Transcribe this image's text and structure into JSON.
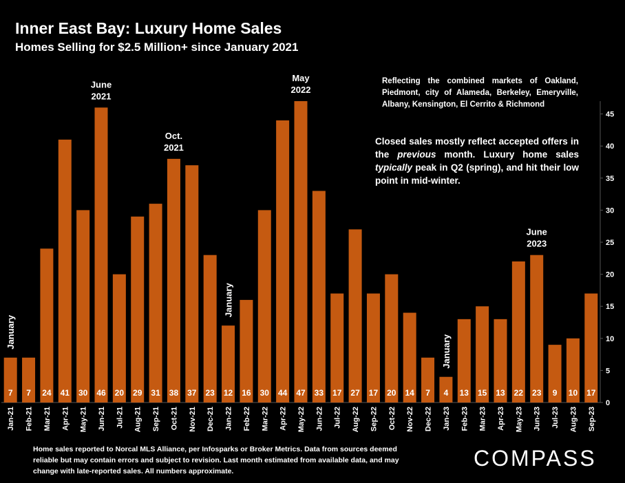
{
  "header": {
    "title": "Inner East Bay: Luxury Home Sales",
    "subtitle": "Homes Selling for $2.5 Million+ since January 2021"
  },
  "notes": {
    "markets": "Reflecting the combined markets of Oakland, Piedmont, city of Alameda, Berkeley, Emeryville, Albany, Kensington, El Cerrito & Richmond",
    "closed_part1": "Closed sales mostly reflect accepted offers in the ",
    "closed_em1": "previous",
    "closed_part2": " month. Luxury home sales ",
    "closed_em2": "typically",
    "closed_part3": " peak in Q2 (spring), and hit their low point in mid-winter.",
    "footnote": "Home sales reported to Norcal MLS Alliance, per Infosparks or Broker Metrics. Data from sources deemed reliable but may contain errors and subject to revision.  Last month estimated from available data, and may change with late-reported sales. All numbers approximate."
  },
  "brand": {
    "logo": "COMPASS"
  },
  "colors": {
    "bar": "#c55a11",
    "background": "#000000",
    "text": "#ffffff",
    "gridline": "#3a3a3a"
  },
  "chart_data": {
    "type": "bar",
    "categories": [
      "Jan-21",
      "Feb-21",
      "Mar-21",
      "Apr-21",
      "May-21",
      "Jun-21",
      "Jul-21",
      "Aug-21",
      "Sep-21",
      "Oct-21",
      "Nov-21",
      "Dec-21",
      "Jan-22",
      "Feb-22",
      "Mar-22",
      "Apr-22",
      "May-22",
      "Jun-22",
      "Jul-22",
      "Aug-22",
      "Sep-22",
      "Oct-22",
      "Nov-22",
      "Dec-22",
      "Jan-23",
      "Feb-23",
      "Mar-23",
      "Apr-23",
      "May-23",
      "Jun-23",
      "Jul-23",
      "Aug-23",
      "Sep-23"
    ],
    "values": [
      7,
      7,
      24,
      41,
      30,
      46,
      20,
      29,
      31,
      38,
      37,
      23,
      12,
      16,
      30,
      44,
      47,
      33,
      17,
      27,
      17,
      20,
      14,
      7,
      4,
      13,
      15,
      13,
      22,
      23,
      9,
      10,
      17
    ],
    "ylim": [
      0,
      47
    ],
    "yticks": [
      0,
      5,
      10,
      15,
      20,
      25,
      30,
      35,
      40,
      45
    ],
    "y_axis_side": "right",
    "grid": false,
    "annotations": [
      {
        "index": 0,
        "text": "January",
        "style": "vertical"
      },
      {
        "index": 5,
        "text": "June\n2021",
        "style": "horizontal"
      },
      {
        "index": 9,
        "text": "Oct.\n2021",
        "style": "horizontal"
      },
      {
        "index": 12,
        "text": "January",
        "style": "vertical"
      },
      {
        "index": 16,
        "text": "May\n2022",
        "style": "horizontal"
      },
      {
        "index": 24,
        "text": "January",
        "style": "vertical"
      },
      {
        "index": 29,
        "text": "June\n2023",
        "style": "horizontal"
      }
    ]
  }
}
